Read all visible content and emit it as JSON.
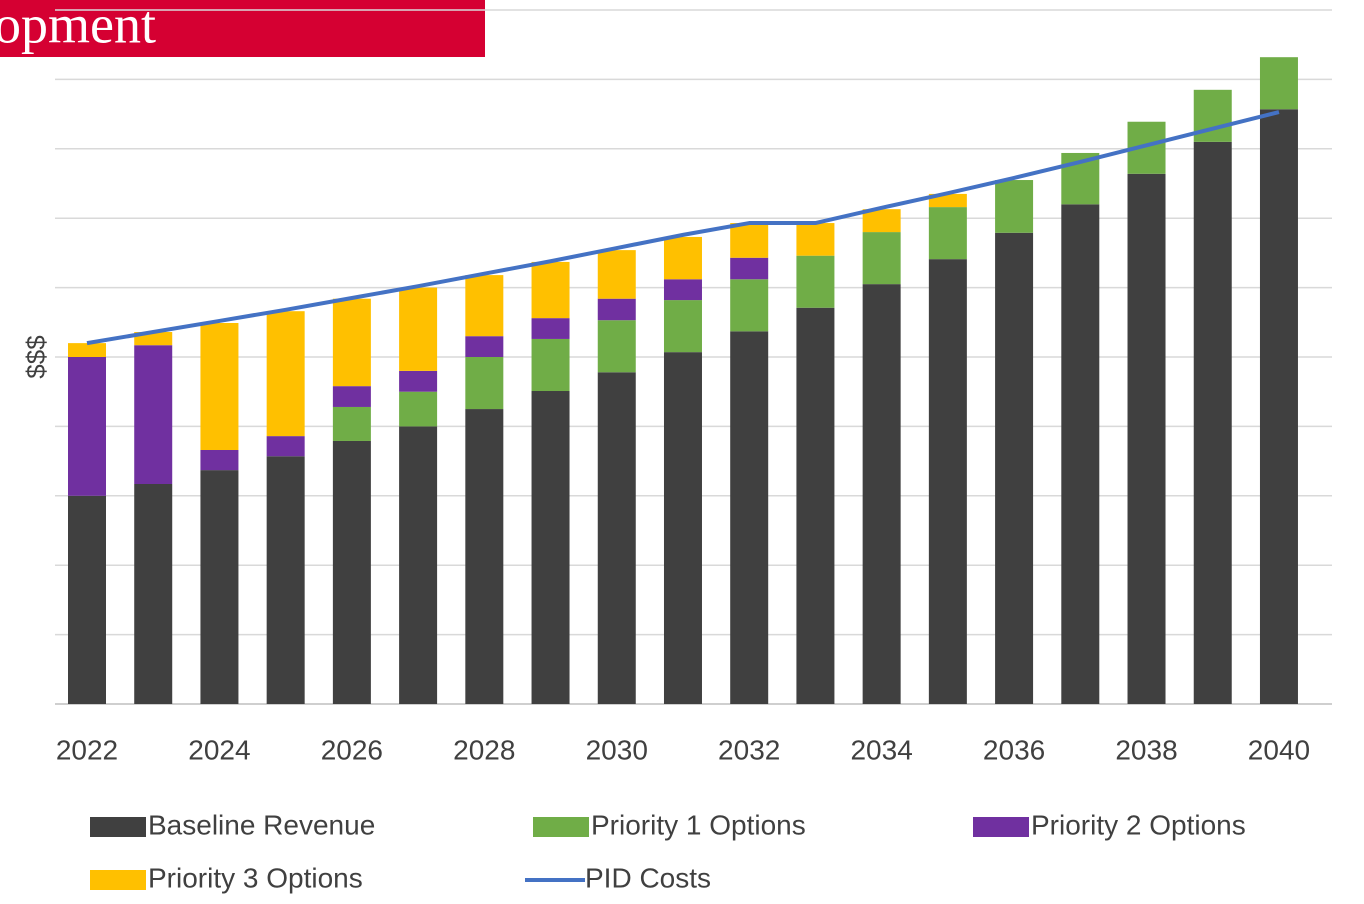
{
  "header": {
    "title": "opment"
  },
  "chart_data": {
    "type": "bar",
    "y_label": "$$$",
    "categories": [
      "2022",
      null,
      "2024",
      null,
      "2026",
      null,
      "2028",
      null,
      "2030",
      null,
      "2032",
      null,
      "2034",
      null,
      "2036",
      null,
      "2038",
      null,
      "2040"
    ],
    "ylim": [
      0,
      10
    ],
    "yticks": [
      0,
      1,
      2,
      3,
      4,
      5,
      6,
      7,
      8,
      9,
      10
    ],
    "grid": true,
    "stacked": true,
    "legend": "bottom",
    "series": [
      {
        "name": "Baseline Revenue",
        "color": "#404040",
        "values": [
          3.0,
          3.17,
          3.37,
          3.57,
          3.79,
          4.0,
          4.25,
          4.51,
          4.78,
          5.07,
          5.37,
          5.71,
          6.05,
          6.41,
          6.79,
          7.2,
          7.64,
          8.1,
          8.57
        ]
      },
      {
        "name": "Priority 1 Options",
        "color": "#70ad47",
        "values": [
          0,
          0,
          0,
          0,
          0.49,
          0.5,
          0.75,
          0.75,
          0.75,
          0.75,
          0.75,
          0.75,
          0.75,
          0.75,
          0.76,
          0.74,
          0.75,
          0.75,
          0.75
        ]
      },
      {
        "name": "Priority 2 Options",
        "color": "#7030a0",
        "values": [
          2.0,
          2.0,
          0.29,
          0.29,
          0.3,
          0.3,
          0.3,
          0.3,
          0.31,
          0.3,
          0.31,
          0,
          0,
          0,
          0,
          0,
          0,
          0,
          0
        ]
      },
      {
        "name": "Priority 3 Options",
        "color": "#ffc000",
        "values": [
          0.2,
          0.19,
          1.83,
          1.8,
          1.26,
          1.2,
          0.88,
          0.81,
          0.7,
          0.61,
          0.5,
          0.47,
          0.33,
          0.19,
          0,
          0,
          0,
          0,
          0
        ]
      },
      {
        "name": "PID Costs",
        "type": "line",
        "color": "#4472c4",
        "values": [
          5.2,
          5.36,
          5.52,
          5.68,
          5.85,
          6.02,
          6.2,
          6.38,
          6.57,
          6.76,
          6.93,
          6.93,
          7.15,
          7.36,
          7.58,
          7.81,
          8.05,
          8.29,
          8.53
        ]
      }
    ]
  }
}
